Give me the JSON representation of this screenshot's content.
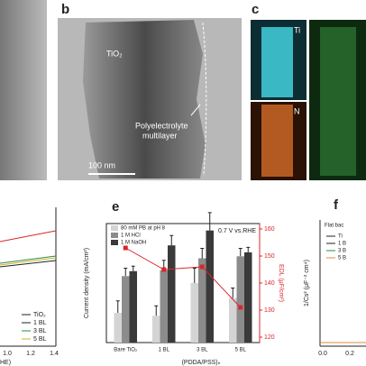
{
  "panel_labels": {
    "b": "b",
    "c": "c",
    "e": "e",
    "f": "f"
  },
  "image_b": {
    "material": "TiO₂",
    "layer_line1": "Polyelectrolyte",
    "layer_line2": "multilayer",
    "scale_bar": "100 nm"
  },
  "image_c": {
    "map1": "Ti",
    "map2": "N"
  },
  "panel_d": {
    "legend": [
      "TiO₂",
      "1 BL",
      "3 BL",
      "5 BL"
    ],
    "xticks": [
      "1.0",
      "1.2",
      "1.4"
    ],
    "xlabel_fragment": "HE)"
  },
  "panel_f": {
    "ylabel": "1/Cs² (μF⁻² cm⁴)",
    "legend_title": "Flat bac",
    "legend": [
      "Ti",
      "1 B",
      "3 B",
      "5 B"
    ],
    "xticks": [
      "0.0",
      "0.2"
    ]
  },
  "chart_data": {
    "type": "bar",
    "annotation": "0.7 V vs.RHE",
    "y_label": "Current density (mA/cm²)",
    "y2_label": "EDL (μF/cm²)",
    "x_label": "(PDDA/PSS)ₙ",
    "categories": [
      "Bare TiO₂",
      "1 BL",
      "3 BL",
      "5 BL"
    ],
    "ylim": [
      0.06,
      0.18
    ],
    "y2lim": [
      118,
      162
    ],
    "y2ticks": [
      120,
      130,
      140,
      150,
      160
    ],
    "series": [
      {
        "name": "80 mM PB at pH 8",
        "color": "#d4d4d4",
        "values": [
          0.09,
          0.087,
          0.12,
          0.105
        ],
        "errors": [
          0.012,
          0.01,
          0.015,
          0.01
        ]
      },
      {
        "name": "1 M HCl",
        "color": "#8c8c8c",
        "values": [
          0.127,
          0.133,
          0.145,
          0.147
        ],
        "errors": [
          0.008,
          0.01,
          0.01,
          0.008
        ]
      },
      {
        "name": "1 M NaOH",
        "color": "#3a3a3a",
        "values": [
          0.132,
          0.158,
          0.173,
          0.151
        ],
        "errors": [
          0.005,
          0.01,
          0.018,
          0.005
        ]
      },
      {
        "name": "EDL",
        "type": "line",
        "axis": "y2",
        "color": "#d9262b",
        "values": [
          153,
          145,
          146,
          131
        ]
      }
    ]
  }
}
